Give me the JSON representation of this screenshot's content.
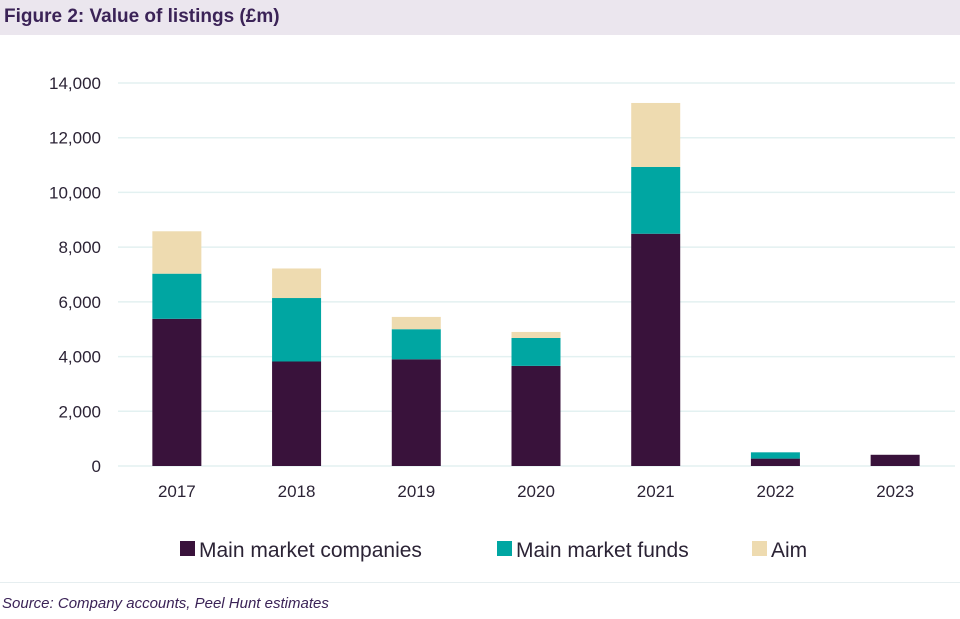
{
  "title": "Figure 2: Value of listings (£m)",
  "source": "Source: Company accounts, Peel Hunt estimates",
  "chart_data": {
    "type": "bar",
    "stacked": true,
    "title": "Figure 2: Value of listings (£m)",
    "xlabel": "",
    "ylabel": "",
    "categories": [
      "2017",
      "2018",
      "2019",
      "2020",
      "2021",
      "2022",
      "2023"
    ],
    "ylim": [
      0,
      14000
    ],
    "yticks": [
      0,
      2000,
      4000,
      6000,
      8000,
      10000,
      12000,
      14000
    ],
    "ytick_labels": [
      "0",
      "2,000",
      "4,000",
      "6,000",
      "8,000",
      "10,000",
      "12,000",
      "14,000"
    ],
    "grid": true,
    "legend_position": "bottom",
    "series": [
      {
        "name": "Main market companies",
        "color": "#39123b",
        "values": [
          5380,
          3820,
          3900,
          3660,
          8490,
          270,
          410
        ]
      },
      {
        "name": "Main market funds",
        "color": "#00a6a2",
        "values": [
          1650,
          2320,
          1100,
          1020,
          2440,
          230,
          0
        ]
      },
      {
        "name": "Aim",
        "color": "#eedbb0",
        "values": [
          1550,
          1080,
          450,
          220,
          2340,
          0,
          0
        ]
      }
    ]
  }
}
